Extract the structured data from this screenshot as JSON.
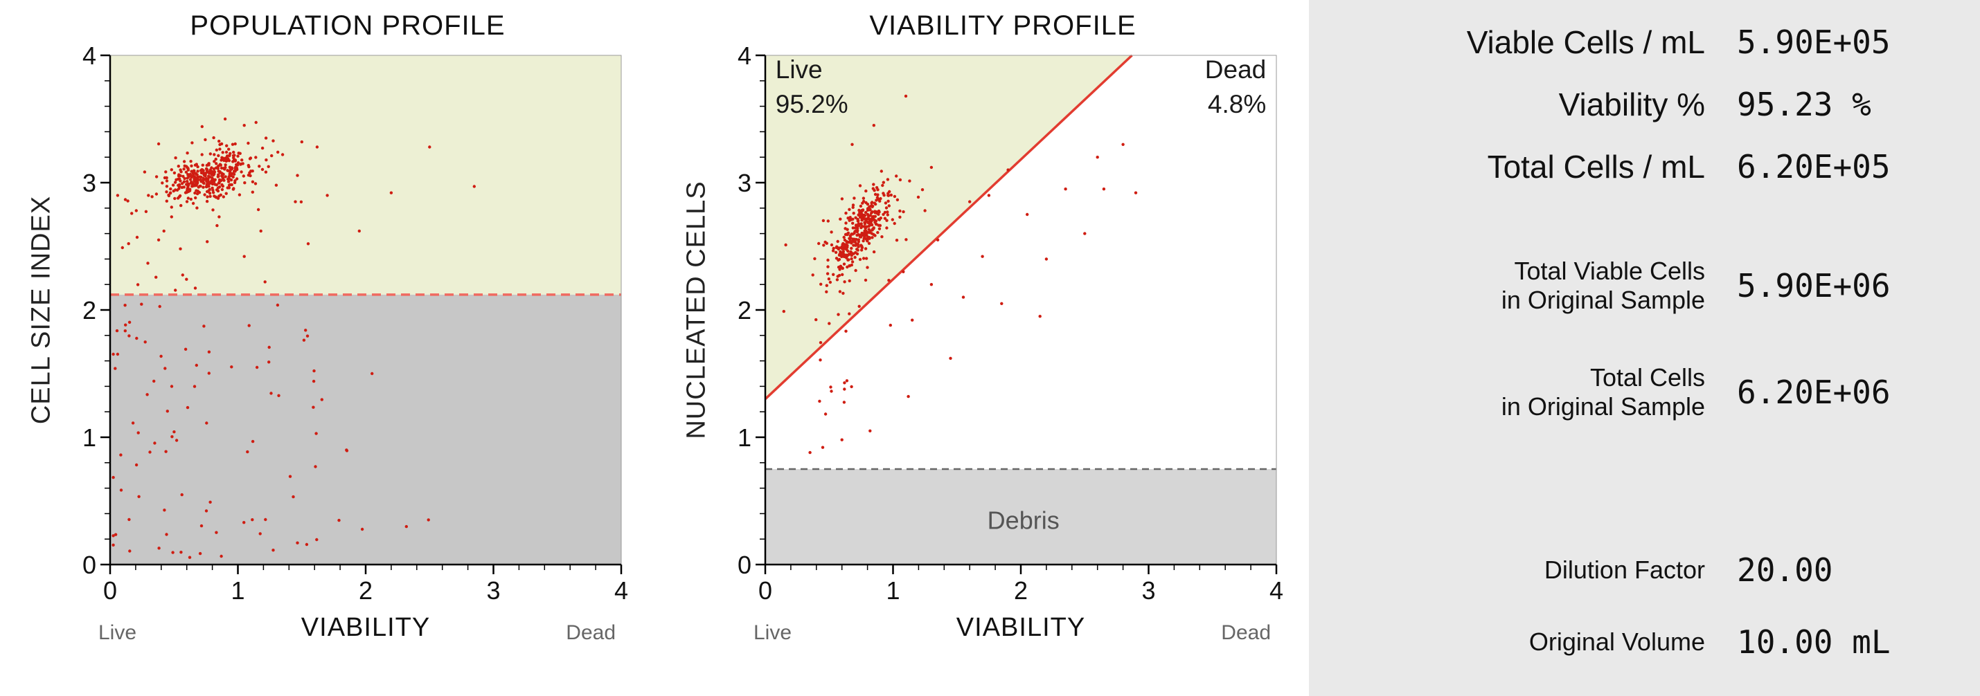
{
  "app": {
    "bg_color": "#ffffff",
    "panel_bg_color": "#e9e9e9",
    "dot_color": "#cf1d12",
    "accent_red": "#e23c30"
  },
  "chart_data": [
    {
      "type": "scatter",
      "title": "POPULATION PROFILE",
      "xlabel": "VIABILITY",
      "ylabel": "CELL SIZE INDEX",
      "x_end_labels": [
        "Live",
        "Dead"
      ],
      "xlim": [
        0,
        4
      ],
      "ylim": [
        0,
        4
      ],
      "ticks": [
        0,
        1,
        2,
        3,
        4
      ],
      "minor_tick_step": 0.2,
      "grid": false,
      "seed": 7,
      "dot_radius": 2.2,
      "regions": [
        {
          "name": "live-size-region",
          "shape": "rect",
          "x": [
            0,
            4
          ],
          "y": [
            2.12,
            4
          ],
          "fill": "#edf0d4"
        },
        {
          "name": "debris-size-region",
          "shape": "rect",
          "x": [
            0,
            4
          ],
          "y": [
            0,
            2.12
          ],
          "fill": "#c7c7c7"
        }
      ],
      "lines": [
        {
          "name": "size-threshold-line",
          "x1": 0,
          "y1": 2.12,
          "x2": 4,
          "y2": 2.12,
          "color": "#f06a60",
          "width": 3.5,
          "dash": "13 8"
        }
      ],
      "annotations": [],
      "clusters": [
        {
          "type": "gauss",
          "count": 360,
          "cx": 0.78,
          "cy": 3.06,
          "sx": 0.16,
          "sy": 0.1,
          "corr": 0.45
        },
        {
          "type": "gauss",
          "count": 45,
          "cx": 0.78,
          "cy": 3.02,
          "sx": 0.33,
          "sy": 0.18,
          "corr": 0.3
        },
        {
          "type": "uniform",
          "count": 16,
          "x": [
            0.05,
            1.35
          ],
          "y": [
            2.15,
            2.85
          ]
        },
        {
          "type": "uniform",
          "count": 80,
          "x": [
            0.02,
            1.65
          ],
          "y": [
            0.04,
            2.05
          ],
          "powx": 1.6
        },
        {
          "type": "uniform",
          "count": 12,
          "x": [
            1.0,
            2.55
          ],
          "y": [
            0.08,
            1.9
          ]
        }
      ],
      "points": [
        [
          1.22,
          3.35
        ],
        [
          1.35,
          3.22
        ],
        [
          1.5,
          3.32
        ],
        [
          1.62,
          3.28
        ],
        [
          1.3,
          2.98
        ],
        [
          1.18,
          2.62
        ],
        [
          1.55,
          2.52
        ],
        [
          1.95,
          2.62
        ],
        [
          2.2,
          2.92
        ],
        [
          2.85,
          2.97
        ],
        [
          0.38,
          2.55
        ],
        [
          0.3,
          2.9
        ],
        [
          0.55,
          2.48
        ],
        [
          1.05,
          2.42
        ],
        [
          1.7,
          2.9
        ],
        [
          2.5,
          3.28
        ],
        [
          0.9,
          3.5
        ],
        [
          1.05,
          3.45
        ],
        [
          0.72,
          3.44
        ],
        [
          1.45,
          2.85
        ],
        [
          2.05,
          1.5
        ],
        [
          1.85,
          0.9
        ]
      ]
    },
    {
      "type": "scatter",
      "title": "VIABILITY PROFILE",
      "xlabel": "VIABILITY",
      "ylabel": "NUCLEATED CELLS",
      "x_end_labels": [
        "Live",
        "Dead"
      ],
      "xlim": [
        0,
        4
      ],
      "ylim": [
        0,
        4
      ],
      "ticks": [
        0,
        1,
        2,
        3,
        4
      ],
      "minor_tick_step": 0.2,
      "grid": false,
      "seed": 13,
      "dot_radius": 2.2,
      "live_percent": "95.2%",
      "dead_percent": "4.8%",
      "regions": [
        {
          "name": "live-region",
          "shape": "polygon",
          "points": [
            [
              0,
              1.3
            ],
            [
              0,
              4
            ],
            [
              2.87,
              4
            ]
          ],
          "fill": "#edf0d4"
        },
        {
          "name": "debris-region",
          "shape": "rect",
          "x": [
            0,
            4
          ],
          "y": [
            0,
            0.75
          ],
          "fill": "#d6d6d6"
        }
      ],
      "lines": [
        {
          "name": "debris-threshold-line",
          "x1": 0,
          "y1": 0.75,
          "x2": 4,
          "y2": 0.75,
          "color": "#666666",
          "width": 2.5,
          "dash": "10 7"
        },
        {
          "name": "viability-threshold-line",
          "x1": 0,
          "y1": 1.3,
          "x2": 2.87,
          "y2": 4,
          "color": "#e23c30",
          "width": 3.5
        }
      ],
      "annotations": [
        {
          "text": "Live",
          "x": 0.08,
          "y": 3.82,
          "anchor": "start",
          "size": 37,
          "color": "#1a1a1a"
        },
        {
          "text": "95.2%",
          "x": 0.08,
          "y": 3.55,
          "anchor": "start",
          "size": 37,
          "color": "#1a1a1a"
        },
        {
          "text": "Dead",
          "x": 3.92,
          "y": 3.82,
          "anchor": "end",
          "size": 37,
          "color": "#1a1a1a"
        },
        {
          "text": "4.8%",
          "x": 3.92,
          "y": 3.55,
          "anchor": "end",
          "size": 37,
          "color": "#1a1a1a"
        },
        {
          "text": "Debris",
          "x": 2.02,
          "y": 0.28,
          "anchor": "middle",
          "size": 36,
          "color": "#555555"
        }
      ],
      "clusters": [
        {
          "type": "gauss",
          "count": 330,
          "cx": 0.72,
          "cy": 2.6,
          "sx": 0.13,
          "sy": 0.17,
          "corr": 0.75
        },
        {
          "type": "gauss",
          "count": 45,
          "cx": 0.72,
          "cy": 2.55,
          "sx": 0.24,
          "sy": 0.3,
          "corr": 0.6
        },
        {
          "type": "gauss",
          "count": 9,
          "cx": 0.55,
          "cy": 1.32,
          "sx": 0.07,
          "sy": 0.08,
          "corr": 0
        },
        {
          "type": "uniform",
          "count": 7,
          "x": [
            0.3,
            0.75
          ],
          "y": [
            1.55,
            2.0
          ]
        }
      ],
      "points": [
        [
          1.15,
          1.92
        ],
        [
          1.3,
          2.2
        ],
        [
          1.45,
          1.62
        ],
        [
          1.55,
          2.1
        ],
        [
          1.7,
          2.42
        ],
        [
          1.85,
          2.05
        ],
        [
          2.05,
          2.75
        ],
        [
          2.2,
          2.4
        ],
        [
          2.35,
          2.95
        ],
        [
          2.5,
          2.6
        ],
        [
          2.65,
          2.95
        ],
        [
          2.8,
          3.3
        ],
        [
          2.9,
          2.92
        ],
        [
          1.35,
          2.55
        ],
        [
          1.6,
          2.85
        ],
        [
          1.9,
          3.1
        ],
        [
          2.6,
          3.2
        ],
        [
          1.25,
          2.78
        ],
        [
          0.98,
          1.88
        ],
        [
          1.08,
          2.3
        ],
        [
          2.15,
          1.95
        ],
        [
          1.75,
          2.9
        ],
        [
          0.85,
          3.45
        ],
        [
          1.1,
          3.68
        ],
        [
          0.68,
          3.3
        ],
        [
          1.3,
          3.12
        ],
        [
          0.45,
          0.92
        ],
        [
          0.6,
          0.98
        ],
        [
          0.35,
          0.88
        ],
        [
          0.82,
          1.05
        ],
        [
          1.12,
          1.32
        ]
      ]
    }
  ],
  "results_panel": {
    "rows": [
      {
        "label": "Viable Cells / mL",
        "value": "5.90E+05"
      },
      {
        "label": "Viability %",
        "value": "95.23 %"
      },
      {
        "label": "Total Cells / mL",
        "value": "6.20E+05"
      },
      {
        "label": "Total Viable Cells\nin Original Sample",
        "value": "5.90E+06"
      },
      {
        "label": "Total Cells\nin Original Sample",
        "value": "6.20E+06"
      },
      {
        "label": "Dilution Factor",
        "value": "20.00"
      },
      {
        "label": "Original Volume",
        "value": "10.00 mL"
      }
    ]
  }
}
